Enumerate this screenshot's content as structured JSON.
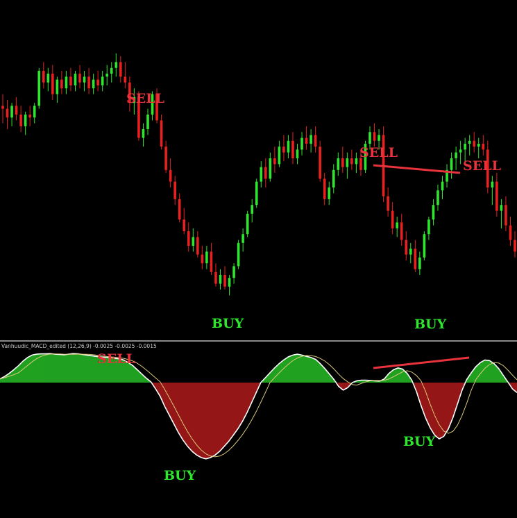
{
  "chart_data": [
    {
      "type": "candlestick",
      "panel": "price",
      "title": "",
      "xlabel": "",
      "ylabel": "",
      "grid": false,
      "up_color": "#2ee62e",
      "down_color": "#e82020",
      "candles_ohlc": [
        [
          0.78,
          0.82,
          0.72,
          0.77
        ],
        [
          0.77,
          0.8,
          0.7,
          0.74
        ],
        [
          0.74,
          0.79,
          0.71,
          0.78
        ],
        [
          0.78,
          0.81,
          0.73,
          0.75
        ],
        [
          0.75,
          0.78,
          0.69,
          0.71
        ],
        [
          0.71,
          0.76,
          0.68,
          0.75
        ],
        [
          0.75,
          0.78,
          0.71,
          0.74
        ],
        [
          0.74,
          0.79,
          0.72,
          0.78
        ],
        [
          0.78,
          0.91,
          0.77,
          0.9
        ],
        [
          0.9,
          0.93,
          0.84,
          0.86
        ],
        [
          0.86,
          0.91,
          0.83,
          0.89
        ],
        [
          0.89,
          0.92,
          0.8,
          0.82
        ],
        [
          0.82,
          0.88,
          0.79,
          0.87
        ],
        [
          0.87,
          0.9,
          0.82,
          0.84
        ],
        [
          0.84,
          0.9,
          0.82,
          0.88
        ],
        [
          0.88,
          0.91,
          0.83,
          0.85
        ],
        [
          0.85,
          0.9,
          0.83,
          0.89
        ],
        [
          0.89,
          0.92,
          0.84,
          0.86
        ],
        [
          0.86,
          0.9,
          0.83,
          0.88
        ],
        [
          0.88,
          0.91,
          0.82,
          0.84
        ],
        [
          0.84,
          0.89,
          0.82,
          0.87
        ],
        [
          0.87,
          0.9,
          0.83,
          0.85
        ],
        [
          0.85,
          0.9,
          0.83,
          0.88
        ],
        [
          0.88,
          0.92,
          0.85,
          0.89
        ],
        [
          0.89,
          0.93,
          0.86,
          0.91
        ],
        [
          0.91,
          0.96,
          0.88,
          0.93
        ],
        [
          0.93,
          0.95,
          0.86,
          0.88
        ],
        [
          0.88,
          0.93,
          0.84,
          0.86
        ],
        [
          0.86,
          0.88,
          0.76,
          0.79
        ],
        [
          0.79,
          0.84,
          0.75,
          0.81
        ],
        [
          0.81,
          0.83,
          0.66,
          0.67
        ],
        [
          0.67,
          0.72,
          0.64,
          0.7
        ],
        [
          0.7,
          0.77,
          0.68,
          0.75
        ],
        [
          0.75,
          0.83,
          0.73,
          0.82
        ],
        [
          0.82,
          0.84,
          0.72,
          0.73
        ],
        [
          0.73,
          0.75,
          0.63,
          0.64
        ],
        [
          0.64,
          0.66,
          0.55,
          0.56
        ],
        [
          0.56,
          0.6,
          0.5,
          0.52
        ],
        [
          0.52,
          0.54,
          0.44,
          0.46
        ],
        [
          0.46,
          0.48,
          0.38,
          0.39
        ],
        [
          0.39,
          0.43,
          0.34,
          0.35
        ],
        [
          0.35,
          0.38,
          0.28,
          0.3
        ],
        [
          0.3,
          0.36,
          0.28,
          0.33
        ],
        [
          0.33,
          0.35,
          0.26,
          0.27
        ],
        [
          0.27,
          0.3,
          0.22,
          0.24
        ],
        [
          0.24,
          0.3,
          0.22,
          0.28
        ],
        [
          0.28,
          0.31,
          0.2,
          0.21
        ],
        [
          0.21,
          0.24,
          0.16,
          0.17
        ],
        [
          0.17,
          0.22,
          0.15,
          0.2
        ],
        [
          0.2,
          0.23,
          0.15,
          0.16
        ],
        [
          0.16,
          0.2,
          0.13,
          0.19
        ],
        [
          0.19,
          0.24,
          0.17,
          0.23
        ],
        [
          0.23,
          0.32,
          0.22,
          0.31
        ],
        [
          0.31,
          0.36,
          0.28,
          0.34
        ],
        [
          0.34,
          0.42,
          0.33,
          0.41
        ],
        [
          0.41,
          0.46,
          0.38,
          0.44
        ],
        [
          0.44,
          0.53,
          0.43,
          0.52
        ],
        [
          0.52,
          0.59,
          0.5,
          0.57
        ],
        [
          0.57,
          0.6,
          0.5,
          0.53
        ],
        [
          0.53,
          0.62,
          0.52,
          0.6
        ],
        [
          0.6,
          0.64,
          0.55,
          0.58
        ],
        [
          0.58,
          0.66,
          0.57,
          0.64
        ],
        [
          0.64,
          0.68,
          0.59,
          0.62
        ],
        [
          0.62,
          0.68,
          0.6,
          0.66
        ],
        [
          0.66,
          0.69,
          0.58,
          0.6
        ],
        [
          0.6,
          0.65,
          0.58,
          0.63
        ],
        [
          0.63,
          0.69,
          0.61,
          0.67
        ],
        [
          0.67,
          0.71,
          0.63,
          0.65
        ],
        [
          0.65,
          0.7,
          0.62,
          0.68
        ],
        [
          0.68,
          0.71,
          0.62,
          0.64
        ],
        [
          0.64,
          0.66,
          0.52,
          0.53
        ],
        [
          0.53,
          0.55,
          0.44,
          0.46
        ],
        [
          0.46,
          0.52,
          0.44,
          0.5
        ],
        [
          0.5,
          0.58,
          0.48,
          0.56
        ],
        [
          0.56,
          0.62,
          0.54,
          0.6
        ],
        [
          0.6,
          0.64,
          0.55,
          0.57
        ],
        [
          0.57,
          0.62,
          0.53,
          0.6
        ],
        [
          0.6,
          0.63,
          0.56,
          0.58
        ],
        [
          0.58,
          0.62,
          0.55,
          0.6
        ],
        [
          0.6,
          0.63,
          0.54,
          0.56
        ],
        [
          0.56,
          0.66,
          0.55,
          0.65
        ],
        [
          0.65,
          0.71,
          0.63,
          0.69
        ],
        [
          0.69,
          0.72,
          0.64,
          0.66
        ],
        [
          0.66,
          0.7,
          0.63,
          0.68
        ],
        [
          0.68,
          0.71,
          0.45,
          0.47
        ],
        [
          0.47,
          0.5,
          0.4,
          0.42
        ],
        [
          0.42,
          0.45,
          0.34,
          0.36
        ],
        [
          0.36,
          0.4,
          0.33,
          0.38
        ],
        [
          0.38,
          0.41,
          0.3,
          0.32
        ],
        [
          0.32,
          0.35,
          0.25,
          0.27
        ],
        [
          0.27,
          0.31,
          0.24,
          0.29
        ],
        [
          0.29,
          0.32,
          0.21,
          0.22
        ],
        [
          0.22,
          0.28,
          0.2,
          0.26
        ],
        [
          0.26,
          0.35,
          0.25,
          0.34
        ],
        [
          0.34,
          0.4,
          0.32,
          0.39
        ],
        [
          0.39,
          0.46,
          0.37,
          0.44
        ],
        [
          0.44,
          0.51,
          0.42,
          0.49
        ],
        [
          0.49,
          0.54,
          0.46,
          0.52
        ],
        [
          0.52,
          0.58,
          0.5,
          0.56
        ],
        [
          0.56,
          0.62,
          0.53,
          0.6
        ],
        [
          0.6,
          0.64,
          0.56,
          0.62
        ],
        [
          0.62,
          0.66,
          0.58,
          0.63
        ],
        [
          0.63,
          0.67,
          0.59,
          0.65
        ],
        [
          0.65,
          0.68,
          0.61,
          0.66
        ],
        [
          0.66,
          0.69,
          0.62,
          0.64
        ],
        [
          0.64,
          0.67,
          0.6,
          0.65
        ],
        [
          0.65,
          0.68,
          0.61,
          0.63
        ],
        [
          0.63,
          0.66,
          0.48,
          0.5
        ],
        [
          0.5,
          0.54,
          0.44,
          0.52
        ],
        [
          0.52,
          0.55,
          0.4,
          0.42
        ],
        [
          0.42,
          0.46,
          0.36,
          0.44
        ],
        [
          0.44,
          0.47,
          0.35,
          0.37
        ],
        [
          0.37,
          0.4,
          0.3,
          0.32
        ],
        [
          0.32,
          0.35,
          0.26,
          0.28
        ]
      ],
      "annotations": [
        {
          "text": "SELL",
          "color": "#e8323c"
        },
        {
          "text": "BUY",
          "color": "#2ee62e"
        },
        {
          "text": "SELL",
          "color": "#e8323c"
        },
        {
          "text": "SELL",
          "color": "#e8323c"
        },
        {
          "text": "BUY",
          "color": "#2ee62e"
        }
      ],
      "divergence_line_color": "#e8323c"
    },
    {
      "type": "histogram",
      "panel": "indicator",
      "indicator_label": "Vanhuudic_MACD_edited (12,26,9) -0.0025 -0.0025 -0.0015",
      "positive_color": "#2ee62e",
      "negative_color": "#d42020",
      "main_line_color": "#ffffff",
      "signal_line_color": "#d8c87a",
      "series": [
        {
          "values": [
            0.12,
            0.2,
            0.3,
            0.42,
            0.55,
            0.7,
            0.82,
            0.9,
            0.93,
            0.94,
            0.94,
            0.95,
            0.93,
            0.92,
            0.91,
            0.93,
            0.95,
            0.94,
            0.92,
            0.9,
            0.88,
            0.86,
            0.84,
            0.83,
            0.82,
            0.8,
            0.78,
            0.74,
            0.66,
            0.56,
            0.42,
            0.28,
            0.14,
            0.02,
            -0.1,
            -0.22,
            -0.38,
            -0.52,
            -0.66,
            -0.8,
            -0.92,
            -1.02,
            -1.1,
            -1.16,
            -1.2,
            -1.22,
            -1.2,
            -1.16,
            -1.1,
            -1.02,
            -0.94,
            -0.84,
            -0.74,
            -0.62,
            -0.48,
            -0.32,
            -0.16,
            0.0,
            0.16,
            0.32,
            0.48,
            0.62,
            0.74,
            0.84,
            0.9,
            0.93,
            0.9,
            0.86,
            0.82,
            0.76,
            0.62,
            0.46,
            0.28,
            0.1,
            -0.06,
            -0.12,
            -0.08,
            0.0,
            0.06,
            0.08,
            0.08,
            0.07,
            0.06,
            0.05,
            0.12,
            0.3,
            0.42,
            0.48,
            0.44,
            0.3,
            0.08,
            -0.14,
            -0.36,
            -0.56,
            -0.72,
            -0.84,
            -0.9,
            -0.86,
            -0.74,
            -0.56,
            -0.34,
            -0.12,
            0.1,
            0.32,
            0.52,
            0.66,
            0.74,
            0.72,
            0.62,
            0.46,
            0.24,
            0.02,
            -0.1,
            -0.16
          ]
        }
      ],
      "annotations": [
        {
          "text": "SELL",
          "color": "#e8323c"
        },
        {
          "text": "BUY",
          "color": "#2ee62e"
        },
        {
          "text": "BUY",
          "color": "#2ee62e"
        }
      ],
      "divergence_line_color": "#e8323c"
    }
  ]
}
